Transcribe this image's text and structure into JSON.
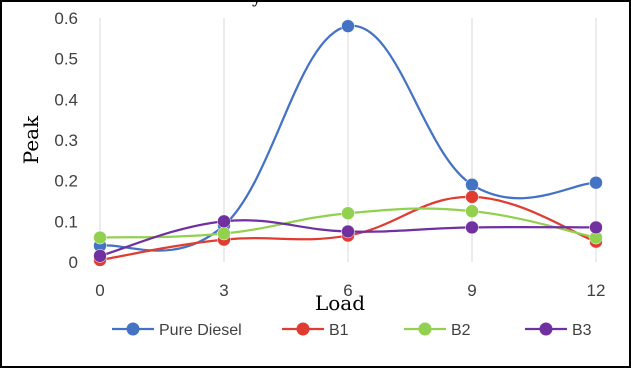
{
  "chart_data": {
    "type": "line",
    "title": "",
    "top_caption": "y",
    "xlabel": "Load",
    "ylabel": "Peak",
    "x": [
      0,
      3,
      6,
      9,
      12
    ],
    "x_tick_labels": [
      "0",
      "3",
      "6",
      "9",
      "12"
    ],
    "y_tick_labels": [
      "0",
      "0.1",
      "0.2",
      "0.3",
      "0.4",
      "0.5",
      "0.6"
    ],
    "ylim": [
      0,
      0.6
    ],
    "grid": "vertical",
    "smooth": true,
    "legend_position": "bottom",
    "series": [
      {
        "name": "Pure Diesel",
        "color": "#4472c4",
        "values": [
          0.04,
          0.09,
          0.58,
          0.19,
          0.195
        ]
      },
      {
        "name": "B1",
        "color": "#e03c31",
        "values": [
          0.005,
          0.055,
          0.065,
          0.16,
          0.05
        ]
      },
      {
        "name": "B2",
        "color": "#92d050",
        "values": [
          0.06,
          0.07,
          0.12,
          0.125,
          0.06
        ]
      },
      {
        "name": "B3",
        "color": "#7030a0",
        "values": [
          0.015,
          0.1,
          0.075,
          0.085,
          0.085
        ]
      }
    ]
  }
}
